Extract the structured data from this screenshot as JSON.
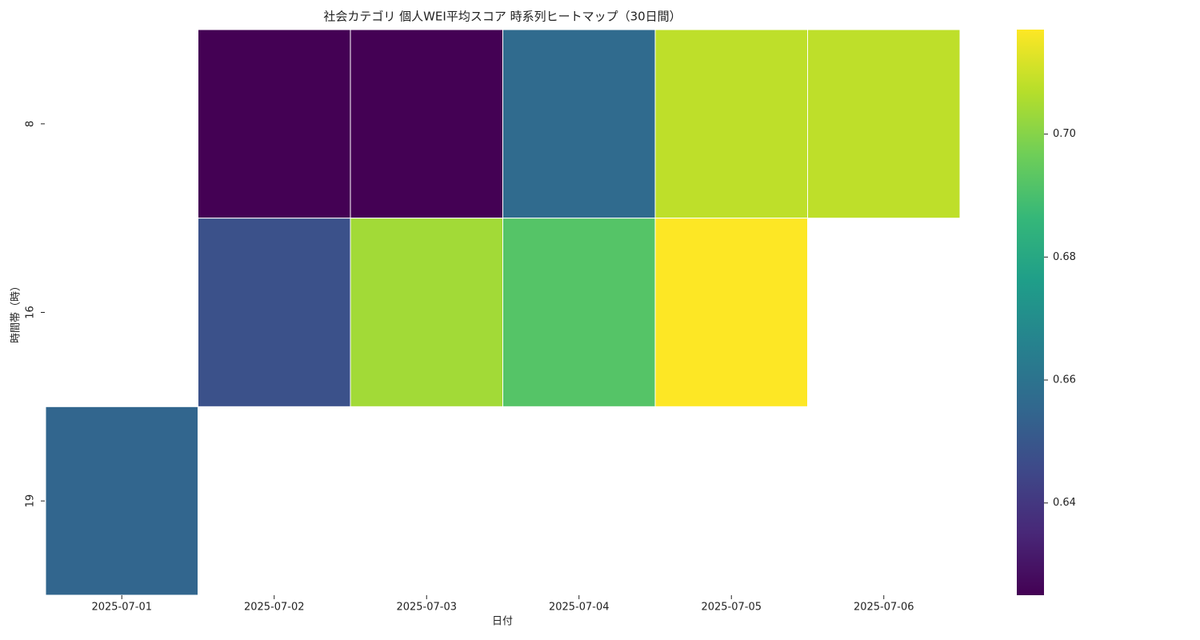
{
  "chart_data": {
    "type": "heatmap",
    "title": "社会カテゴリ 個人WEI平均スコア 時系列ヒートマップ（30日間）",
    "x_label": "日付",
    "y_label": "時間帯（時）",
    "x": [
      "2025-07-01",
      "2025-07-02",
      "2025-07-03",
      "2025-07-04",
      "2025-07-05",
      "2025-07-06"
    ],
    "y": [
      "8",
      "16",
      "19"
    ],
    "values": [
      [
        null,
        0.625,
        0.625,
        0.657,
        0.708,
        0.708
      ],
      [
        null,
        0.648,
        0.704,
        0.692,
        0.717,
        null
      ],
      [
        0.655,
        null,
        null,
        null,
        null,
        null
      ]
    ],
    "colormap": "viridis",
    "zlim": [
      0.625,
      0.717
    ],
    "zticks": [
      0.64,
      0.66,
      0.68,
      {
        "value": 0.7,
        "label": "0.70"
      }
    ]
  }
}
